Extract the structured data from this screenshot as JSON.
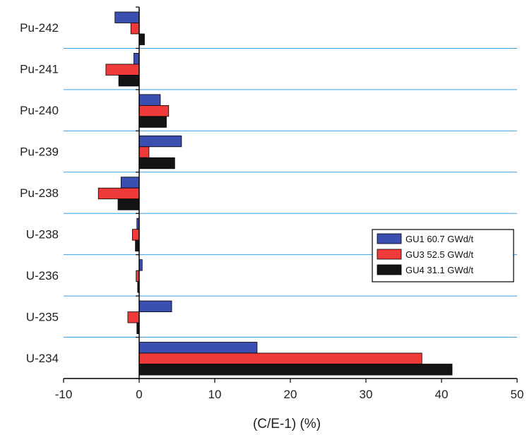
{
  "chart_data": {
    "type": "bar",
    "orientation": "horizontal",
    "categories": [
      "Pu-242",
      "Pu-241",
      "Pu-240",
      "Pu-239",
      "Pu-238",
      "U-238",
      "U-236",
      "U-235",
      "U-234"
    ],
    "series": [
      {
        "name": "GU1 60.7 GWd/t",
        "color": "#3a4fb0",
        "values": [
          -3.2,
          -0.7,
          2.8,
          5.6,
          -2.4,
          -0.3,
          0.4,
          4.3,
          15.6
        ]
      },
      {
        "name": "GU3 52.5 GWd/t",
        "color": "#f03a3a",
        "values": [
          -1.1,
          -4.4,
          3.9,
          1.3,
          -5.4,
          -0.9,
          -0.4,
          -1.5,
          37.4
        ]
      },
      {
        "name": "GU4 31.1 GWd/t",
        "color": "#141414",
        "values": [
          0.7,
          -2.7,
          3.6,
          4.7,
          -2.8,
          -0.5,
          -0.2,
          -0.3,
          41.4
        ]
      }
    ],
    "xlabel": "(C/E-1) (%)",
    "ylabel": "",
    "title": "",
    "xlim": [
      -10,
      50
    ],
    "xticks": [
      -10,
      0,
      10,
      20,
      30,
      40,
      50
    ],
    "xtick_labels": [
      "-10",
      "0",
      "10",
      "20",
      "30",
      "40",
      "50"
    ],
    "grid": "horizontal separators between categories",
    "grid_color": "#3aa0e8",
    "legend_position": "right"
  }
}
